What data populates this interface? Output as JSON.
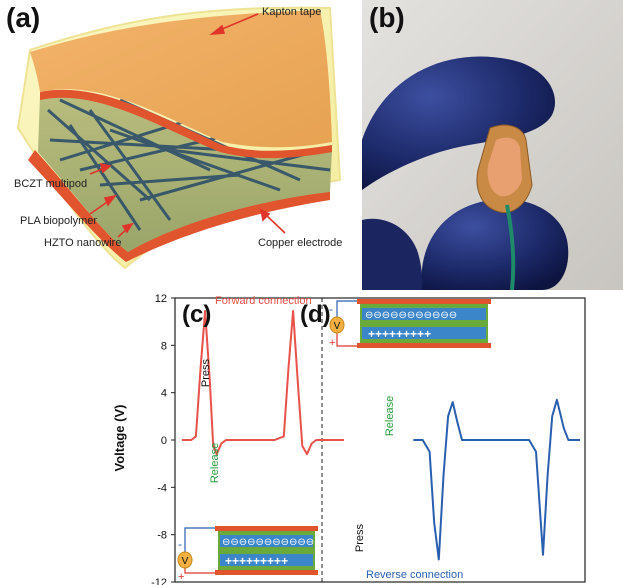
{
  "panels": {
    "a": {
      "label": "(a)",
      "callouts": {
        "kapton": "Kapton tape",
        "bczt": "BCZT multipod",
        "pla": "PLA biopolymer",
        "hzto": "HZTO nanowire",
        "copper": "Copper electrode"
      }
    },
    "b": {
      "label": "(b)"
    },
    "c": {
      "label": "(c)",
      "connection": "Forward connection",
      "press": "Press",
      "release": "Release"
    },
    "d": {
      "label": "(d)",
      "connection": "Reverse connection",
      "press": "Press",
      "release": "Release"
    }
  },
  "meter_symbol": "V",
  "polarity": {
    "minus": "-",
    "plus": "+"
  },
  "cell_signs": {
    "top": "⊖⊖⊖⊖⊖⊖⊖⊖⊖⊖⊖",
    "bottom": "+++++++++"
  },
  "chart_data": {
    "type": "line",
    "ylabel": "Voltage (V)",
    "xlabel": "",
    "ylim": [
      -12,
      12
    ],
    "yticks": [
      12,
      8,
      4,
      0,
      -4,
      -8,
      -12
    ],
    "series": [
      {
        "name": "Forward connection",
        "color": "#e8524a",
        "points": [
          [
            0,
            0
          ],
          [
            0.04,
            0
          ],
          [
            0.06,
            0.3
          ],
          [
            0.08,
            6
          ],
          [
            0.1,
            10.9
          ],
          [
            0.12,
            5
          ],
          [
            0.135,
            -0.5
          ],
          [
            0.15,
            -1.2
          ],
          [
            0.17,
            -0.3
          ],
          [
            0.19,
            0
          ],
          [
            0.4,
            0
          ],
          [
            0.44,
            0.3
          ],
          [
            0.46,
            6
          ],
          [
            0.48,
            10.9
          ],
          [
            0.5,
            5
          ],
          [
            0.52,
            -0.5
          ],
          [
            0.54,
            -1.2
          ],
          [
            0.56,
            -0.3
          ],
          [
            0.58,
            0
          ],
          [
            0.7,
            0
          ]
        ]
      },
      {
        "name": "Reverse connection",
        "color": "#2a5fb0",
        "points": [
          [
            1.0,
            0
          ],
          [
            1.04,
            0
          ],
          [
            1.07,
            -1
          ],
          [
            1.09,
            -7
          ],
          [
            1.11,
            -10.1
          ],
          [
            1.13,
            -3
          ],
          [
            1.15,
            2
          ],
          [
            1.17,
            3.2
          ],
          [
            1.19,
            1.5
          ],
          [
            1.21,
            0
          ],
          [
            1.5,
            0
          ],
          [
            1.53,
            -1
          ],
          [
            1.56,
            -9.7
          ],
          [
            1.58,
            -3
          ],
          [
            1.6,
            2
          ],
          [
            1.62,
            3.4
          ],
          [
            1.65,
            1
          ],
          [
            1.67,
            0
          ],
          [
            1.72,
            0
          ]
        ]
      }
    ]
  }
}
